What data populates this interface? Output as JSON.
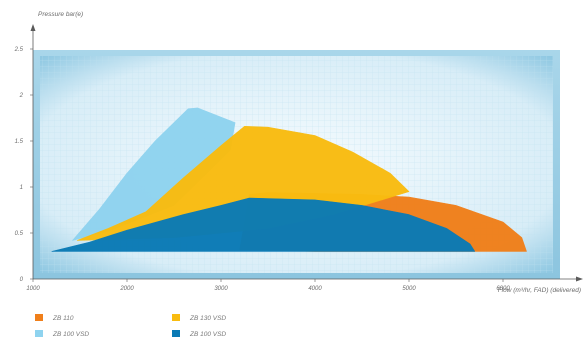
{
  "chart_data": {
    "type": "area",
    "ylabel": "Pressure bar(e)",
    "xlabel": "Flow (m³/hr, FAD) (delivered)",
    "xlim": [
      1000,
      6500
    ],
    "ylim": [
      0,
      2.5
    ],
    "x_ticks": [
      "1000",
      "2000",
      "3000",
      "4000",
      "5000",
      "6000"
    ],
    "y_ticks": [
      "0",
      "0.5",
      "1",
      "1.5",
      "2",
      "2.5"
    ],
    "grid": true,
    "legend_position": "bottom-left",
    "series": [
      {
        "name": "ZB 110",
        "color": "#f07f1a",
        "points": [
          [
            3200,
            0.32
          ],
          [
            3300,
            0.92
          ],
          [
            3500,
            0.94
          ],
          [
            4000,
            0.93
          ],
          [
            4500,
            0.92
          ],
          [
            5000,
            0.89
          ],
          [
            5500,
            0.8
          ],
          [
            6000,
            0.62
          ],
          [
            6200,
            0.45
          ],
          [
            6250,
            0.3
          ],
          [
            4000,
            0.3
          ]
        ]
      },
      {
        "name": "ZB 100 VSD",
        "color": "#8fd3ef",
        "points": [
          [
            1420,
            0.42
          ],
          [
            1700,
            0.75
          ],
          [
            2000,
            1.15
          ],
          [
            2300,
            1.5
          ],
          [
            2650,
            1.85
          ],
          [
            2750,
            1.86
          ],
          [
            3150,
            1.7
          ],
          [
            3100,
            1.4
          ],
          [
            2900,
            1.2
          ],
          [
            2500,
            0.8
          ],
          [
            1800,
            0.52
          ],
          [
            1500,
            0.44
          ]
        ]
      },
      {
        "name": "ZB 130 VSD",
        "color": "#f9bc10",
        "points": [
          [
            1470,
            0.42
          ],
          [
            1800,
            0.55
          ],
          [
            2200,
            0.73
          ],
          [
            2600,
            1.1
          ],
          [
            3000,
            1.45
          ],
          [
            3250,
            1.66
          ],
          [
            3500,
            1.65
          ],
          [
            4000,
            1.56
          ],
          [
            4400,
            1.38
          ],
          [
            4800,
            1.15
          ],
          [
            5000,
            0.95
          ],
          [
            4200,
            0.7
          ],
          [
            3500,
            0.55
          ],
          [
            2500,
            0.45
          ]
        ]
      },
      {
        "name": "ZB 100 VSD",
        "color": "#0a7ab5",
        "points": [
          [
            1200,
            0.3
          ],
          [
            1600,
            0.4
          ],
          [
            2000,
            0.53
          ],
          [
            2600,
            0.7
          ],
          [
            3000,
            0.8
          ],
          [
            3300,
            0.88
          ],
          [
            4000,
            0.86
          ],
          [
            4500,
            0.8
          ],
          [
            5000,
            0.7
          ],
          [
            5400,
            0.55
          ],
          [
            5650,
            0.38
          ],
          [
            5700,
            0.3
          ]
        ]
      }
    ]
  }
}
